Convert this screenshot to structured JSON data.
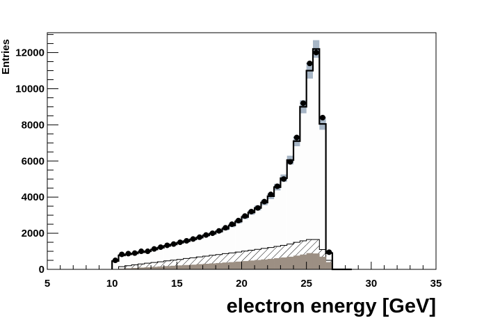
{
  "chart_data": {
    "type": "bar",
    "xlabel": "electron energy [GeV]",
    "ylabel": "Entries",
    "xlim": [
      5,
      35
    ],
    "ylim": [
      0,
      13100
    ],
    "x_ticks": [
      "5",
      "10",
      "15",
      "20",
      "25",
      "30",
      "35"
    ],
    "y_ticks": [
      "0",
      "2000",
      "4000",
      "6000",
      "8000",
      "10000",
      "12000"
    ],
    "grid": false,
    "bin_low_edges_start": 10,
    "bin_width": 0.5,
    "data_points": [
      500,
      830,
      870,
      900,
      1000,
      1000,
      1130,
      1230,
      1330,
      1400,
      1500,
      1580,
      1680,
      1780,
      1900,
      2000,
      2130,
      2300,
      2500,
      2700,
      2950,
      3200,
      3400,
      3750,
      4150,
      4600,
      5000,
      5950,
      7300,
      9200,
      11400,
      12000,
      8400,
      950,
      0,
      0,
      0
    ],
    "mc_total": [
      460,
      770,
      830,
      880,
      950,
      1000,
      1100,
      1200,
      1300,
      1380,
      1480,
      1560,
      1660,
      1760,
      1880,
      1980,
      2100,
      2250,
      2430,
      2650,
      2900,
      3150,
      3400,
      3700,
      4050,
      4550,
      5050,
      6050,
      7100,
      9000,
      11000,
      12200,
      8050,
      900,
      0,
      0,
      0
    ],
    "mc_uncertainty_fraction": 0.04,
    "background_total": [
      0,
      150,
      200,
      250,
      300,
      340,
      380,
      420,
      470,
      510,
      550,
      600,
      640,
      690,
      730,
      780,
      820,
      870,
      910,
      960,
      1010,
      1060,
      1110,
      1160,
      1210,
      1270,
      1330,
      1400,
      1500,
      1580,
      1650,
      1650,
      1100,
      500,
      0,
      0,
      0
    ],
    "background_component": [
      0,
      40,
      60,
      80,
      100,
      120,
      140,
      160,
      180,
      200,
      220,
      240,
      260,
      290,
      310,
      330,
      350,
      380,
      400,
      430,
      460,
      490,
      520,
      550,
      580,
      620,
      660,
      700,
      760,
      820,
      900,
      880,
      700,
      400,
      0,
      0,
      0
    ],
    "colors": {
      "data": "#000000",
      "mc_band": "#a7b6c6",
      "mc_fill": "#fdfdfd",
      "background_hatch": "#000000",
      "background_component": "#9c8f83"
    }
  }
}
